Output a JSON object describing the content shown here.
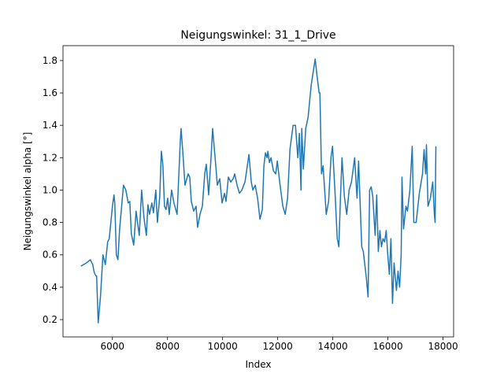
{
  "chart_data": {
    "type": "line",
    "title": "Neigungswinkel: 31_1_Drive",
    "x_label": "Index",
    "y_label": "Neigungswinkel alpha [°]",
    "x": [
      4854,
      5055,
      5198,
      5284,
      5341,
      5399,
      5427,
      5484,
      5570,
      5656,
      5742,
      5828,
      5885,
      6000,
      6057,
      6086,
      6143,
      6200,
      6258,
      6401,
      6487,
      6573,
      6630,
      6687,
      6773,
      6859,
      6974,
      7060,
      7146,
      7232,
      7289,
      7346,
      7432,
      7489,
      7575,
      7632,
      7718,
      7776,
      7833,
      7890,
      7948,
      8005,
      8062,
      8148,
      8234,
      8348,
      8463,
      8492,
      8549,
      8635,
      8749,
      8807,
      8864,
      8950,
      9036,
      9093,
      9179,
      9265,
      9351,
      9408,
      9494,
      9580,
      9637,
      9752,
      9809,
      9895,
      9981,
      10067,
      10124,
      10210,
      10296,
      10382,
      10439,
      10525,
      10611,
      10697,
      10812,
      10897,
      10955,
      11041,
      11098,
      11184,
      11270,
      11356,
      11442,
      11499,
      11556,
      11613,
      11642,
      11699,
      11757,
      11843,
      11929,
      11986,
      12072,
      12186,
      12272,
      12358,
      12444,
      12559,
      12645,
      12730,
      12788,
      12845,
      12874,
      12931,
      13017,
      13103,
      13217,
      13360,
      13418,
      13504,
      13532,
      13590,
      13647,
      13762,
      13847,
      13933,
      13990,
      14076,
      14162,
      14220,
      14277,
      14334,
      14420,
      14506,
      14592,
      14678,
      14793,
      14879,
      14936,
      15050,
      15108,
      15222,
      15280,
      15337,
      15394,
      15451,
      15537,
      15594,
      15652,
      15709,
      15766,
      15823,
      15880,
      15938,
      15995,
      16052,
      16110,
      16167,
      16224,
      16310,
      16368,
      16425,
      16482,
      16511,
      16568,
      16654,
      16711,
      16797,
      16883,
      16940,
      17026,
      17141,
      17256,
      17313,
      17370,
      17399,
      17456,
      17542,
      17628,
      17686,
      17714,
      17742
    ],
    "series": [
      {
        "color": "#1f77b4",
        "values": [
          0.53,
          0.55,
          0.57,
          0.54,
          0.49,
          0.47,
          0.47,
          0.18,
          0.35,
          0.6,
          0.54,
          0.68,
          0.7,
          0.9,
          0.97,
          0.92,
          0.6,
          0.57,
          0.75,
          1.03,
          1.0,
          0.92,
          0.93,
          0.73,
          0.66,
          0.87,
          0.72,
          1.0,
          0.83,
          0.72,
          0.91,
          0.85,
          0.92,
          0.86,
          1.0,
          0.8,
          0.96,
          1.24,
          1.15,
          0.9,
          0.88,
          0.95,
          0.85,
          1.0,
          0.92,
          0.85,
          1.3,
          1.38,
          1.25,
          1.03,
          1.1,
          1.08,
          0.93,
          0.87,
          0.9,
          0.77,
          0.85,
          0.9,
          1.1,
          1.16,
          0.97,
          1.2,
          1.38,
          1.15,
          1.03,
          1.07,
          0.92,
          0.98,
          0.93,
          1.08,
          1.05,
          1.07,
          1.1,
          1.03,
          0.98,
          1.0,
          1.05,
          1.15,
          1.22,
          1.05,
          1.0,
          1.03,
          0.95,
          0.82,
          0.88,
          1.15,
          1.23,
          1.2,
          1.24,
          1.17,
          1.2,
          1.12,
          1.1,
          1.18,
          1.05,
          0.9,
          0.85,
          0.95,
          1.25,
          1.4,
          1.4,
          1.2,
          1.35,
          1.0,
          1.38,
          1.13,
          1.38,
          1.45,
          1.65,
          1.81,
          1.72,
          1.6,
          1.6,
          1.1,
          1.15,
          0.85,
          0.93,
          1.2,
          1.27,
          1.0,
          0.7,
          0.65,
          0.95,
          1.2,
          0.96,
          0.85,
          1.0,
          1.05,
          1.2,
          0.95,
          1.18,
          0.65,
          0.62,
          0.45,
          0.34,
          1.0,
          1.02,
          0.96,
          0.72,
          0.97,
          0.62,
          0.75,
          0.65,
          0.7,
          0.68,
          0.75,
          0.6,
          0.48,
          0.7,
          0.3,
          0.55,
          0.38,
          0.5,
          0.4,
          0.6,
          1.08,
          0.76,
          0.9,
          0.87,
          1.0,
          1.27,
          0.8,
          0.8,
          0.98,
          1.1,
          1.25,
          1.1,
          1.28,
          0.9,
          0.95,
          1.05,
          0.85,
          0.8,
          1.27
        ]
      }
    ],
    "xlim": [
      4206,
      18385
    ],
    "xticks": [
      6000,
      8000,
      10000,
      12000,
      14000,
      16000,
      18000
    ],
    "ylim": [
      0.093,
      1.892
    ],
    "yticks": [
      0.2,
      0.4,
      0.6,
      0.8,
      {
        "value": 1,
        "label": "1.0"
      },
      1.2,
      1.4,
      1.6,
      1.8
    ],
    "grid": false
  }
}
